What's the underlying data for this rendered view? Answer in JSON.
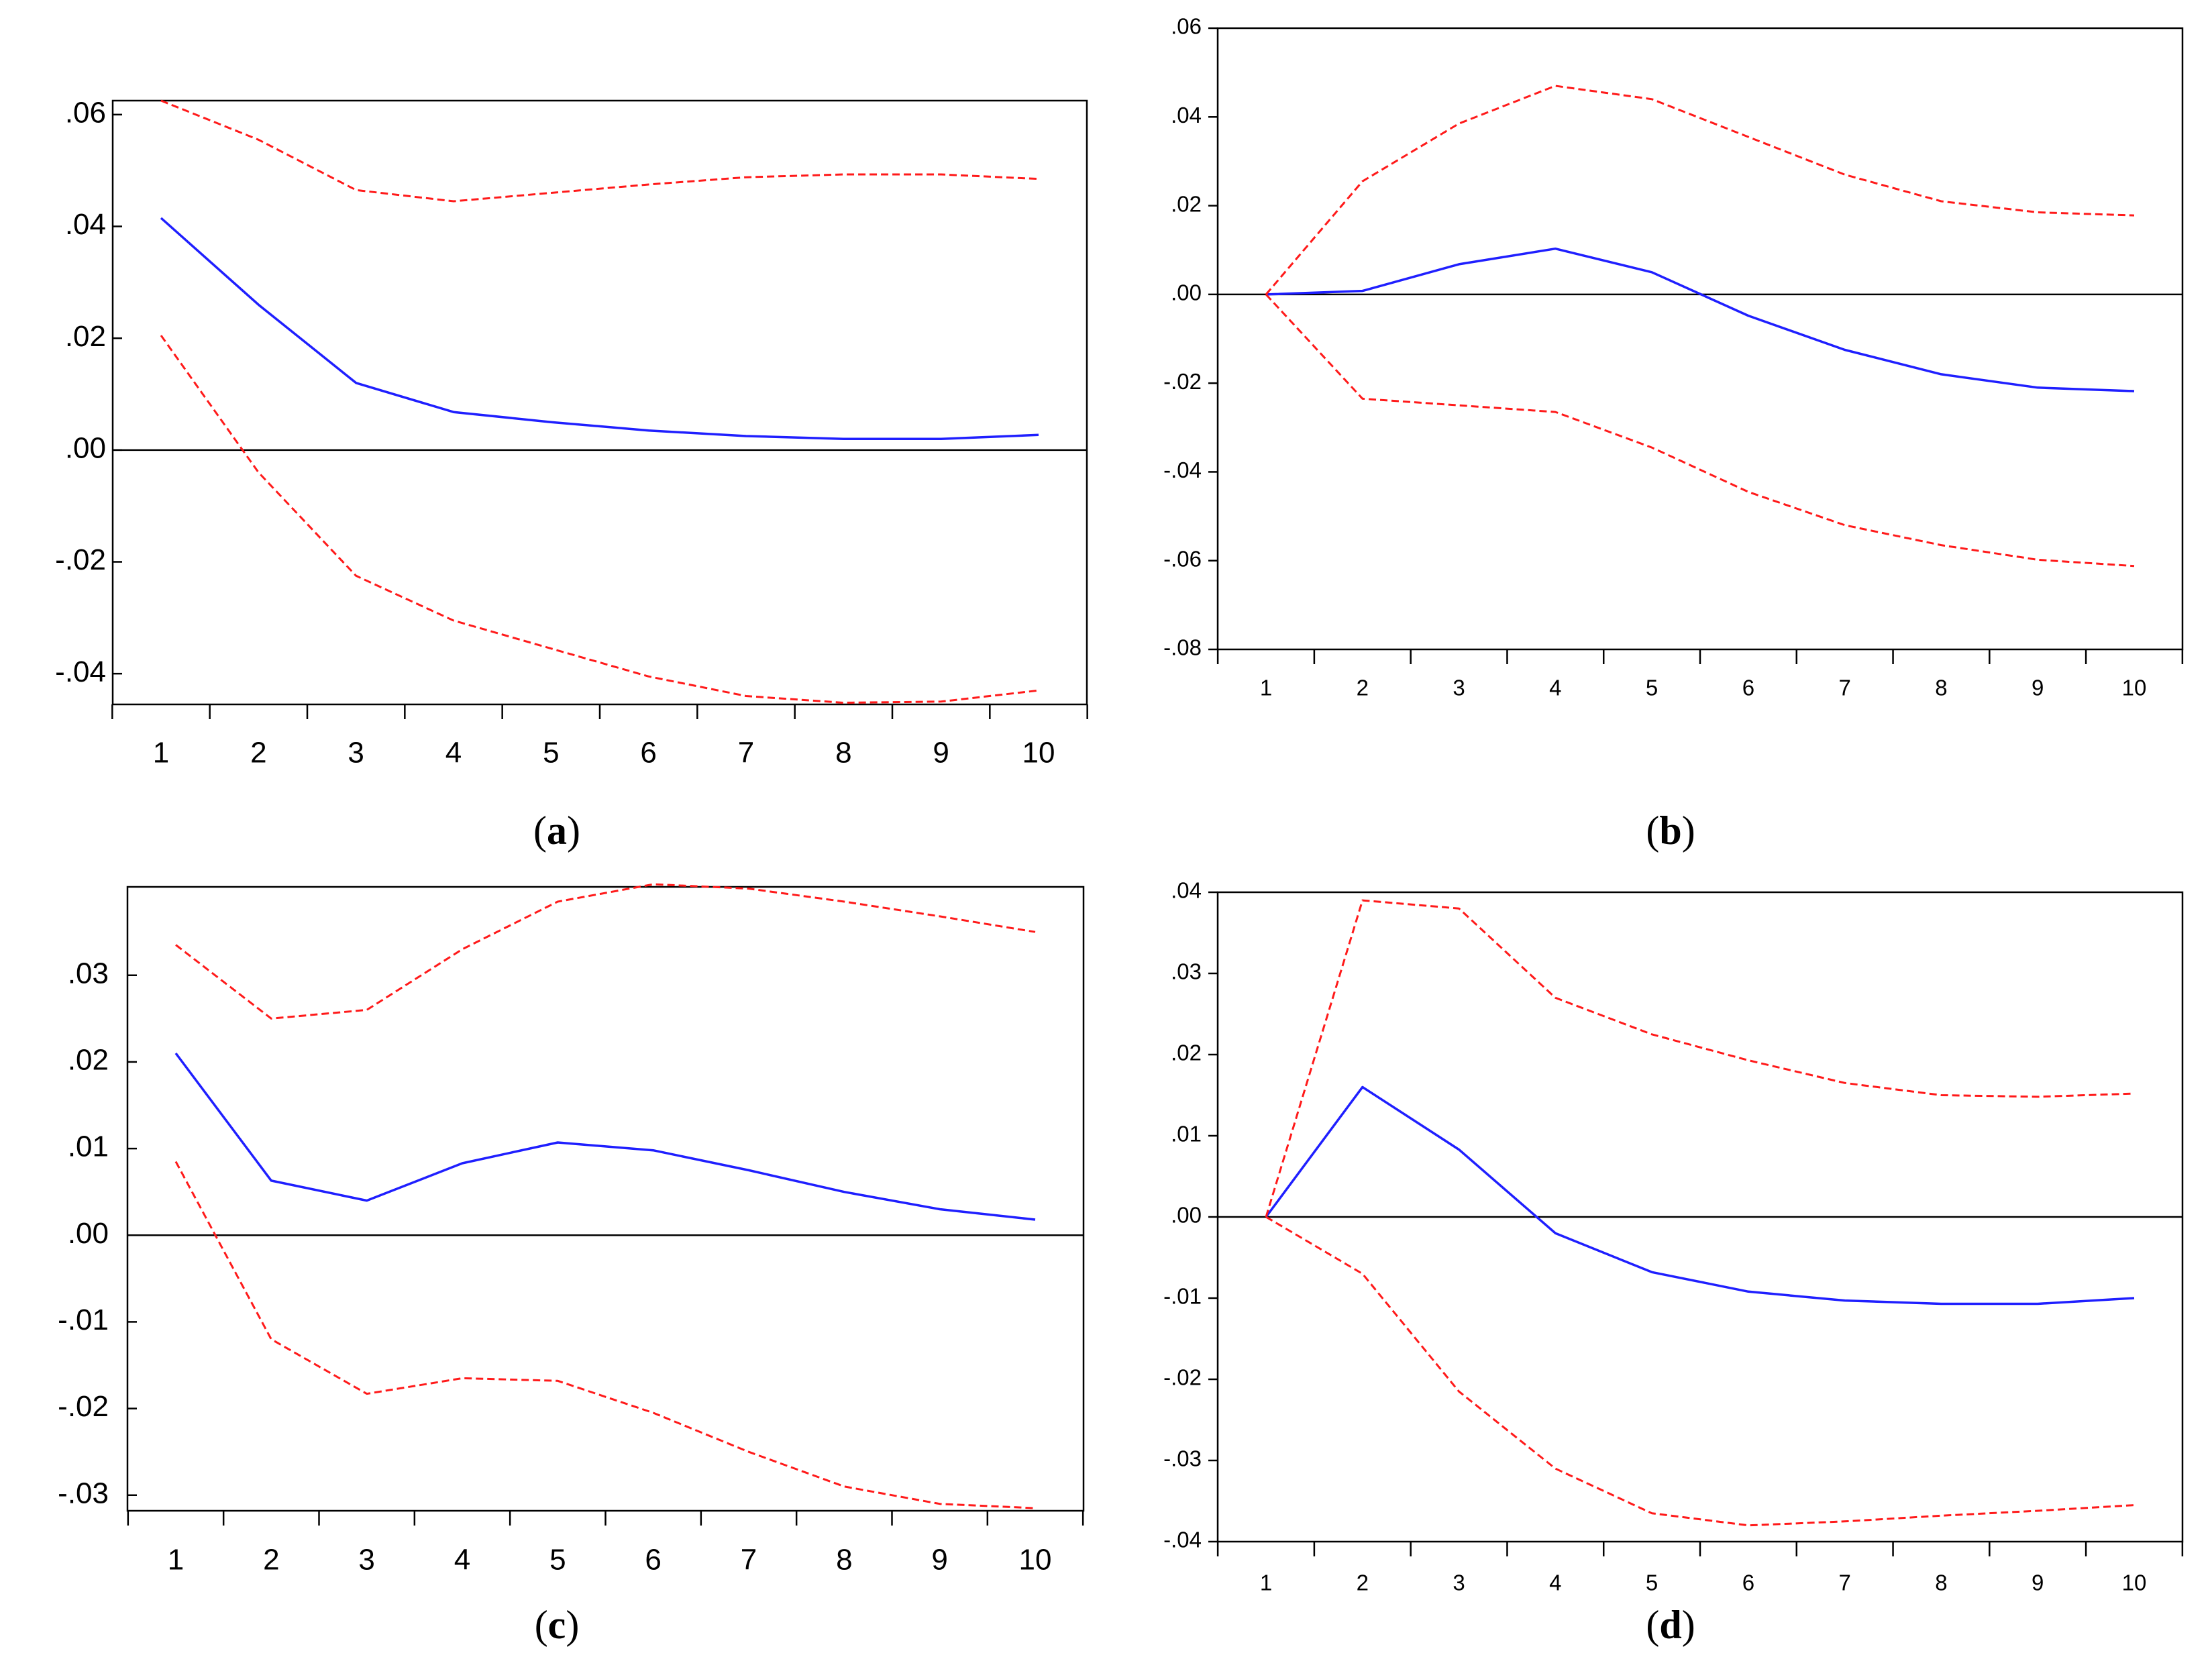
{
  "colors": {
    "response": "#1f1fff",
    "band": "#ff1a1a",
    "axis": "#000000"
  },
  "chart_data": [
    {
      "id": "a",
      "type": "line",
      "caption": {
        "open": "(",
        "letter": "a",
        "close": ")"
      },
      "x": [
        1,
        2,
        3,
        4,
        5,
        6,
        7,
        8,
        9,
        10
      ],
      "xtick_labels": [
        "1",
        "2",
        "3",
        "4",
        "5",
        "6",
        "7",
        "8",
        "9",
        "10"
      ],
      "ytick_values": [
        0.06,
        0.04,
        0.02,
        0.0,
        -0.02,
        -0.04
      ],
      "ytick_labels": [
        ".06",
        ".04",
        ".02",
        ".00",
        "-.02",
        "-.04"
      ],
      "ylim": [
        -0.0455,
        0.0625
      ],
      "series": [
        {
          "name": "response",
          "style": "solid",
          "values": [
            0.0415,
            0.026,
            0.012,
            0.0068,
            0.005,
            0.0035,
            0.0025,
            0.002,
            0.002,
            0.0027
          ]
        },
        {
          "name": "upper",
          "style": "dashed",
          "values": [
            0.0625,
            0.0555,
            0.0465,
            0.0445,
            0.046,
            0.0475,
            0.0488,
            0.0493,
            0.0493,
            0.0485
          ]
        },
        {
          "name": "lower",
          "style": "dashed",
          "values": [
            0.0205,
            -0.004,
            -0.0225,
            -0.0305,
            -0.0355,
            -0.0405,
            -0.044,
            -0.0452,
            -0.045,
            -0.043
          ]
        }
      ]
    },
    {
      "id": "b",
      "type": "line",
      "caption": {
        "open": "(",
        "letter": "b",
        "close": ")"
      },
      "x": [
        1,
        2,
        3,
        4,
        5,
        6,
        7,
        8,
        9,
        10
      ],
      "xtick_labels": [
        "1",
        "2",
        "3",
        "4",
        "5",
        "6",
        "7",
        "8",
        "9",
        "10"
      ],
      "ytick_values": [
        0.06,
        0.04,
        0.02,
        0.0,
        -0.02,
        -0.04,
        -0.06,
        -0.08
      ],
      "ytick_labels": [
        ".06",
        ".04",
        ".02",
        ".00",
        "-.02",
        "-.04",
        "-.06",
        "-.08"
      ],
      "ylim": [
        -0.08,
        0.06
      ],
      "series": [
        {
          "name": "response",
          "style": "solid",
          "values": [
            0.0,
            0.0008,
            0.0068,
            0.0103,
            0.005,
            -0.0048,
            -0.0125,
            -0.018,
            -0.021,
            -0.0218
          ]
        },
        {
          "name": "upper",
          "style": "dashed",
          "values": [
            0.0,
            0.0255,
            0.0385,
            0.047,
            0.044,
            0.0355,
            0.027,
            0.021,
            0.0185,
            0.0178
          ]
        },
        {
          "name": "lower",
          "style": "dashed",
          "values": [
            0.0,
            -0.0235,
            -0.025,
            -0.0265,
            -0.0345,
            -0.0445,
            -0.052,
            -0.0565,
            -0.0598,
            -0.0612
          ]
        }
      ]
    },
    {
      "id": "c",
      "type": "line",
      "caption": {
        "open": "(",
        "letter": "c",
        "close": ")"
      },
      "x": [
        1,
        2,
        3,
        4,
        5,
        6,
        7,
        8,
        9,
        10
      ],
      "xtick_labels": [
        "1",
        "2",
        "3",
        "4",
        "5",
        "6",
        "7",
        "8",
        "9",
        "10"
      ],
      "ytick_values": [
        0.03,
        0.02,
        0.01,
        0.0,
        -0.01,
        -0.02,
        -0.03
      ],
      "ytick_labels": [
        ".03",
        ".02",
        ".01",
        ".00",
        "-.01",
        "-.02",
        "-.03"
      ],
      "ylim": [
        -0.0318,
        0.0402
      ],
      "series": [
        {
          "name": "response",
          "style": "solid",
          "values": [
            0.021,
            0.0063,
            0.004,
            0.0083,
            0.0107,
            0.0098,
            0.0075,
            0.005,
            0.003,
            0.0018
          ]
        },
        {
          "name": "upper",
          "style": "dashed",
          "values": [
            0.0335,
            0.025,
            0.026,
            0.033,
            0.0385,
            0.0405,
            0.04,
            0.0385,
            0.0368,
            0.035
          ]
        },
        {
          "name": "lower",
          "style": "dashed",
          "values": [
            0.0085,
            -0.012,
            -0.0183,
            -0.0165,
            -0.0168,
            -0.0205,
            -0.025,
            -0.029,
            -0.031,
            -0.0315
          ]
        }
      ]
    },
    {
      "id": "d",
      "type": "line",
      "caption": {
        "open": "(",
        "letter": "d",
        "close": ")"
      },
      "x": [
        1,
        2,
        3,
        4,
        5,
        6,
        7,
        8,
        9,
        10
      ],
      "xtick_labels": [
        "1",
        "2",
        "3",
        "4",
        "5",
        "6",
        "7",
        "8",
        "9",
        "10"
      ],
      "ytick_values": [
        0.04,
        0.03,
        0.02,
        0.01,
        0.0,
        -0.01,
        -0.02,
        -0.03,
        -0.04
      ],
      "ytick_labels": [
        ".04",
        ".03",
        ".02",
        ".01",
        ".00",
        "-.01",
        "-.02",
        "-.03",
        "-.04"
      ],
      "ylim": [
        -0.04,
        0.04
      ],
      "series": [
        {
          "name": "response",
          "style": "solid",
          "values": [
            0.0,
            0.016,
            0.0083,
            -0.002,
            -0.0068,
            -0.0092,
            -0.0103,
            -0.0107,
            -0.0107,
            -0.01
          ]
        },
        {
          "name": "upper",
          "style": "dashed",
          "values": [
            0.0,
            0.039,
            0.038,
            0.027,
            0.0225,
            0.0193,
            0.0165,
            0.015,
            0.0148,
            0.0152
          ]
        },
        {
          "name": "lower",
          "style": "dashed",
          "values": [
            0.0,
            -0.007,
            -0.0215,
            -0.031,
            -0.0365,
            -0.038,
            -0.0375,
            -0.0368,
            -0.0362,
            -0.0355
          ]
        }
      ]
    }
  ]
}
